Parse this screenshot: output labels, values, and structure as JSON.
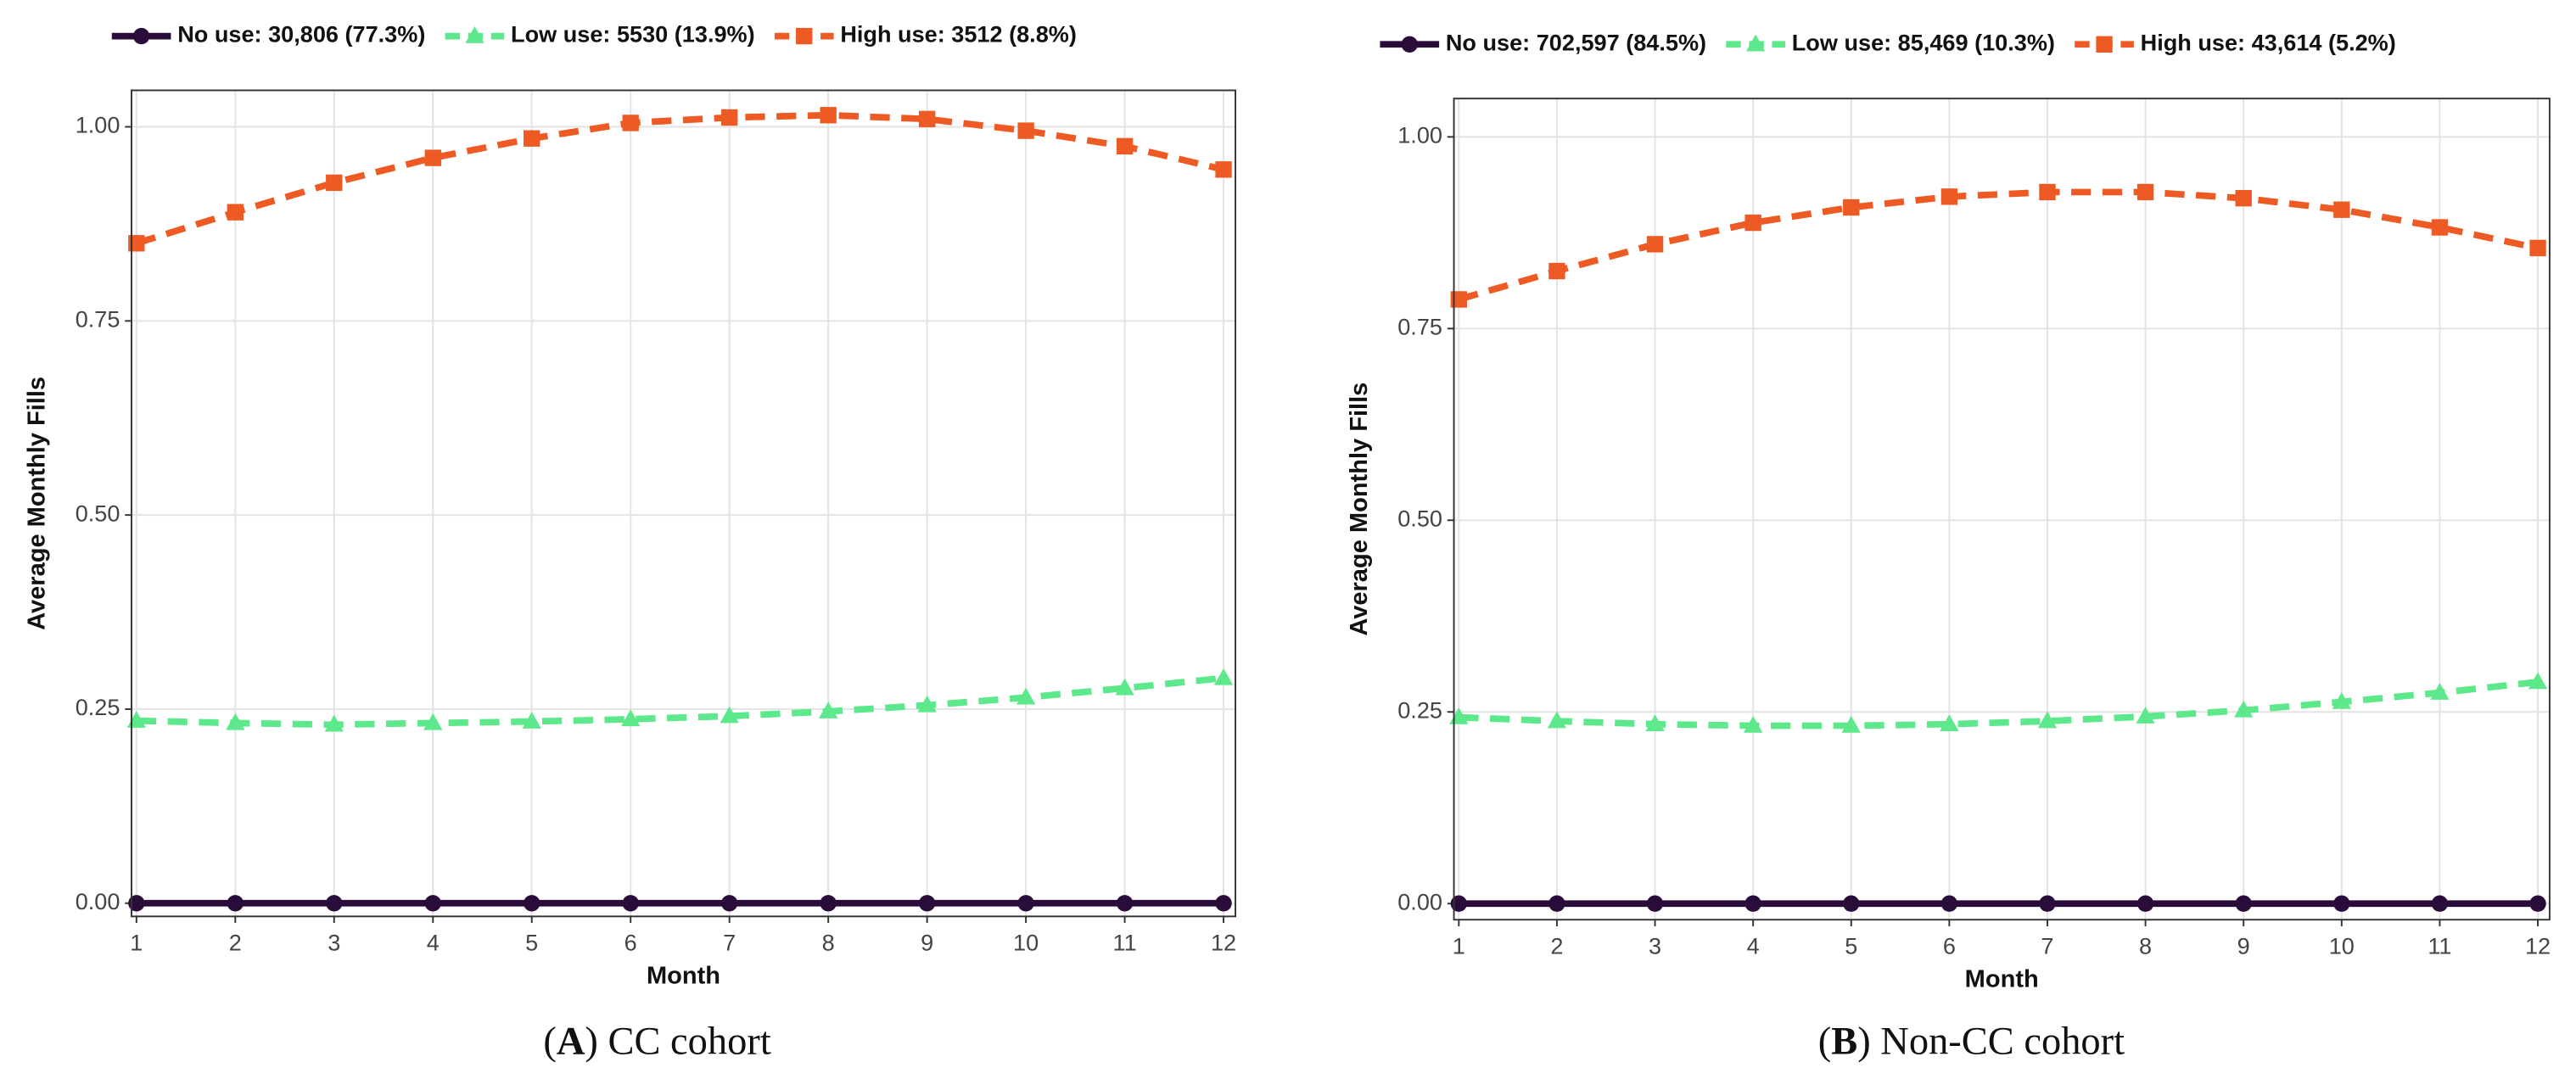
{
  "chart_data": [
    {
      "type": "line",
      "xlabel": "Month",
      "ylabel": "Average Monthly Fills",
      "legend": "top",
      "grid": true,
      "caption": [
        "(",
        "A",
        ") CC cohort"
      ],
      "x": [
        1,
        2,
        3,
        4,
        5,
        6,
        7,
        8,
        9,
        10,
        11,
        12
      ],
      "xlim": [
        0.95,
        12.12
      ],
      "xticks": [
        1,
        2,
        3,
        4,
        5,
        6,
        7,
        8,
        9,
        10,
        11,
        12
      ],
      "ylim": [
        -0.017,
        1.047
      ],
      "yticks": [
        {
          "value": 0,
          "label": "0.00"
        },
        {
          "value": 0.25,
          "label": "0.25"
        },
        {
          "value": 0.5,
          "label": "0.50"
        },
        {
          "value": 0.75,
          "label": "0.75"
        },
        {
          "value": 1,
          "label": "1.00"
        }
      ],
      "series": [
        {
          "name": "No use: 30,806 (77.3%)",
          "color": "#2a0c3a",
          "marker": "circle",
          "dashed": false,
          "values": [
            0,
            0,
            0,
            0,
            0,
            0,
            0,
            0,
            0,
            0,
            0,
            0
          ]
        },
        {
          "name": "Low use: 5530 (13.9%)",
          "color": "#5ee88c",
          "marker": "triangle",
          "dashed": true,
          "values": [
            0.235,
            0.232,
            0.23,
            0.232,
            0.234,
            0.237,
            0.241,
            0.247,
            0.255,
            0.265,
            0.277,
            0.29
          ]
        },
        {
          "name": "High use: 3512 (8.8%)",
          "color": "#ee5a24",
          "marker": "square",
          "dashed": true,
          "values": [
            0.85,
            0.89,
            0.928,
            0.96,
            0.985,
            1.005,
            1.012,
            1.015,
            1.01,
            0.995,
            0.975,
            0.945
          ]
        }
      ]
    },
    {
      "type": "line",
      "xlabel": "Month",
      "ylabel": "Average Monthly Fills",
      "legend": "top",
      "grid": true,
      "caption": [
        "(",
        "B",
        ") Non-CC cohort"
      ],
      "x": [
        1,
        2,
        3,
        4,
        5,
        6,
        7,
        8,
        9,
        10,
        11,
        12
      ],
      "xlim": [
        0.95,
        12.12
      ],
      "xticks": [
        1,
        2,
        3,
        4,
        5,
        6,
        7,
        8,
        9,
        10,
        11,
        12
      ],
      "ylim": [
        -0.021,
        1.05
      ],
      "yticks": [
        {
          "value": 0,
          "label": "0.00"
        },
        {
          "value": 0.25,
          "label": "0.25"
        },
        {
          "value": 0.5,
          "label": "0.50"
        },
        {
          "value": 0.75,
          "label": "0.75"
        },
        {
          "value": 1,
          "label": "1.00"
        }
      ],
      "series": [
        {
          "name": "No use: 702,597 (84.5%)",
          "color": "#2a0c3a",
          "marker": "circle",
          "dashed": false,
          "values": [
            0,
            0,
            0,
            0,
            0,
            0,
            0,
            0,
            0,
            0,
            0,
            0
          ]
        },
        {
          "name": "Low use: 85,469 (10.3%)",
          "color": "#5ee88c",
          "marker": "triangle",
          "dashed": true,
          "values": [
            0.243,
            0.238,
            0.234,
            0.232,
            0.232,
            0.234,
            0.238,
            0.244,
            0.252,
            0.263,
            0.275,
            0.289
          ]
        },
        {
          "name": "High use: 43,614 (5.2%)",
          "color": "#ee5a24",
          "marker": "square",
          "dashed": true,
          "values": [
            0.788,
            0.825,
            0.86,
            0.888,
            0.908,
            0.922,
            0.928,
            0.928,
            0.92,
            0.905,
            0.882,
            0.855
          ]
        }
      ]
    }
  ]
}
